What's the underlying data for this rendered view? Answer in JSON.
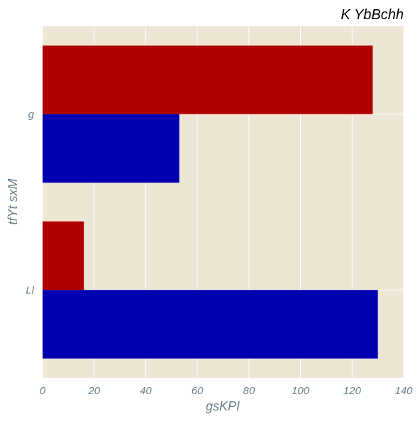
{
  "chart_data": {
    "type": "bar",
    "orientation": "horizontal",
    "title": "K YbBchh",
    "xlabel": "gsKPI",
    "ylabel": "tfYt sxM",
    "categories": [
      "g",
      "Ll"
    ],
    "series": [
      {
        "color": "#b00000",
        "values": [
          128,
          16
        ]
      },
      {
        "color": "#0000b0",
        "values": [
          53,
          130
        ]
      }
    ],
    "xlim": [
      0,
      140
    ],
    "xticks": [
      0,
      20,
      40,
      60,
      80,
      100,
      120,
      140
    ],
    "grid": true,
    "legend": "none",
    "background": "#ede6d4",
    "grid_color": "#ffffff"
  }
}
